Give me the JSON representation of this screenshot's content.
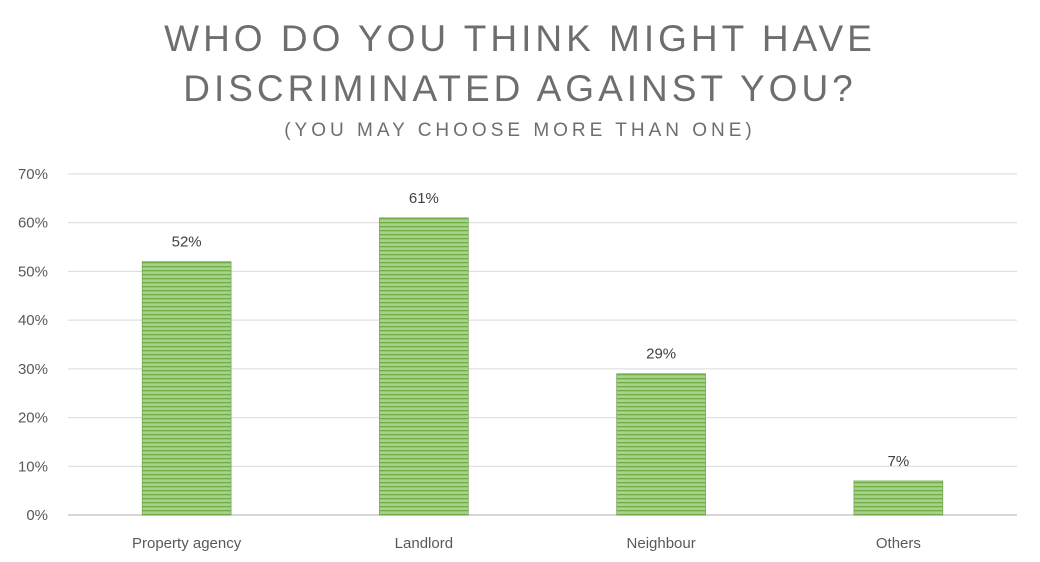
{
  "chart_data": {
    "type": "bar",
    "title_lines": [
      "WHO DO YOU THINK MIGHT HAVE",
      "DISCRIMINATED AGAINST YOU?"
    ],
    "subtitle": "(YOU MAY CHOOSE MORE THAN ONE)",
    "categories": [
      "Property agency",
      "Landlord",
      "Neighbour",
      "Others"
    ],
    "values": [
      52,
      61,
      29,
      7
    ],
    "data_labels": [
      "52%",
      "61%",
      "29%",
      "7%"
    ],
    "ylim": [
      0,
      70
    ],
    "yticks": [
      0,
      10,
      20,
      30,
      40,
      50,
      60,
      70
    ],
    "ytick_labels": [
      "0%",
      "10%",
      "20%",
      "30%",
      "40%",
      "50%",
      "60%",
      "70%"
    ],
    "xlabel": "",
    "ylabel": "",
    "grid": true,
    "legend": "none",
    "colors": {
      "bar_fill": "#a9d18e",
      "bar_stripe": "#70ad47",
      "bar_edge": "#6a9a45",
      "gridline": "#d9d9d9",
      "axis_line": "#bfbfbf",
      "title_text": "#6e6e6e"
    }
  }
}
